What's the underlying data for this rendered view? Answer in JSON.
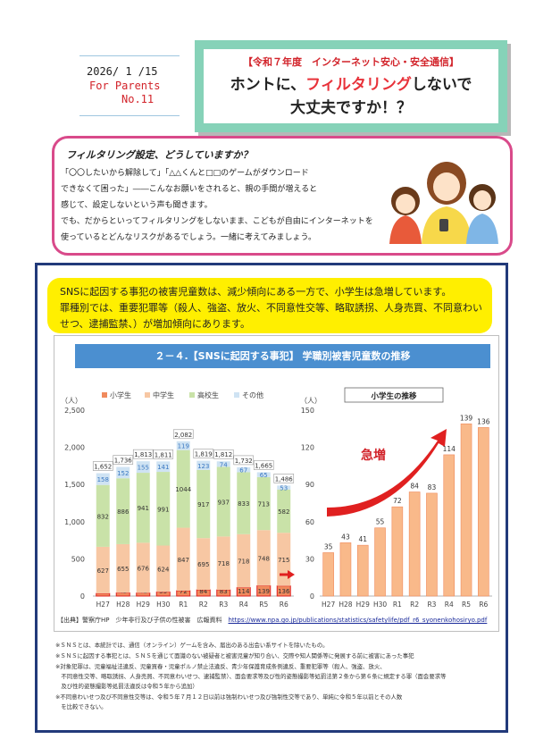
{
  "header": {
    "date": "2026/ 1 /15",
    "audience": "For Parents",
    "issue": "No.11",
    "subtitle": "【令和７年度　インターネット安心・安全通信】",
    "title_part1": "ホントに、",
    "title_highlight": "フィルタリング",
    "title_part2": "しないで",
    "title_line2": "大丈夫ですか！？"
  },
  "intro": {
    "heading": "フィルタリング設定、どうしていますか？",
    "lines": [
      "「〇〇したいから解除して」「△△くんと□□のゲームがダウンロード",
      "できなくて困った」――こんなお願いをされると、親の手間が増えると",
      "感じて、設定しないという声も聞きます。",
      "でも、だからといってフィルタリングをしないまま、こどもが自由にインターネットを",
      "使っているとどんなリスクがあるでしょう。一緒に考えてみましょう。"
    ]
  },
  "summary": {
    "lines": [
      "SNSに起因する事犯の被害児童数は、減少傾向にある一方で、小学生は急増しています。",
      "罪種別では、重要犯罪等（殺人、強盗、放火、不同意性交等、略取誘拐、人身売買、不同意わい",
      "せつ、逮捕監禁、）が増加傾向にあります。"
    ]
  },
  "chart_title": "２－４.【SNSに起因する事犯】 学職別被害児童数の推移",
  "chart_data": [
    {
      "type": "bar",
      "stacked": true,
      "ylabel": "（人）",
      "ylim": [
        0,
        2500
      ],
      "yticks": [
        "0",
        "500",
        "1,000",
        "1,500",
        "2,000",
        "2,500"
      ],
      "categories": [
        "H27",
        "H28",
        "H29",
        "H30",
        "R1",
        "R2",
        "R3",
        "R4",
        "R5",
        "R6"
      ],
      "totals": [
        "1,652",
        "1,736",
        "1,813",
        "1,811",
        "2,082",
        "1,819",
        "1,812",
        "1,732",
        "1,665",
        "1,486"
      ],
      "series": [
        {
          "name": "小学生",
          "color": "#f08a5d",
          "values": [
            35,
            43,
            41,
            55,
            72,
            84,
            83,
            114,
            139,
            136
          ]
        },
        {
          "name": "中学生",
          "color": "#f7c7a3",
          "values": [
            627,
            655,
            676,
            624,
            847,
            695,
            718,
            718,
            748,
            715
          ]
        },
        {
          "name": "高校生",
          "color": "#c9e2a8",
          "values": [
            832,
            886,
            941,
            991,
            1044,
            917,
            937,
            833,
            713,
            582
          ]
        },
        {
          "name": "その他",
          "color": "#cfe3f3",
          "values": [
            158,
            152,
            155,
            141,
            119,
            123,
            74,
            67,
            65,
            53
          ]
        }
      ],
      "grid": false,
      "legend": "top"
    },
    {
      "type": "bar",
      "title": "小学生の推移",
      "annotation": "急増",
      "ylabel": "（人）",
      "ylim": [
        0,
        150
      ],
      "yticks": [
        "0",
        "30",
        "60",
        "90",
        "120",
        "150"
      ],
      "categories": [
        "H27",
        "H28",
        "H29",
        "H30",
        "R1",
        "R2",
        "R3",
        "R4",
        "R5",
        "R6"
      ],
      "series": [
        {
          "name": "小学生",
          "color": "#f9b98a",
          "values": [
            35,
            43,
            41,
            55,
            72,
            84,
            83,
            114,
            139,
            136
          ]
        }
      ],
      "grid": false
    }
  ],
  "source": {
    "prefix": "【出典】警察庁HP　少年非行及び子供の性被害　広報資料",
    "url": "https://www.npa.go.jp/publications/statistics/safetylife/pdf_r6_syonenkohosiryo.pdf"
  },
  "notes": [
    "※ＳＮＳとは、本統計では、通信（オンライン）ゲームを含み、届出のある出会い系サイトを除いたもの。",
    "※ＳＮＳに起因する事犯とは、ＳＮＳを通じて面識のない被疑者と被害児童が知り合い、交際や知人関係等に発展する前に被害にあった事犯",
    "※対象犯罪は、児童福祉法違反、児童買春・児童ポルノ禁止法違反、青少年保護育成条例違反、重要犯罪等（殺人、強盗、放火、",
    "　不同意性交等、略取誘拐、人身売買、不同意わいせつ、逮捕監禁）、面会要求等及び性的姿態撮影等処罰法第２条から第６条に規定する罪（面会要求等",
    "　及び性的姿態撮影等処罰法違反は令和５年から追加）",
    "※不同意わいせつ及び不同意性交等は、令和５年７月１２日以前は強制わいせつ及び強制性交等であり、単純に令和５年以前とその人数",
    "　を比較できない。"
  ]
}
